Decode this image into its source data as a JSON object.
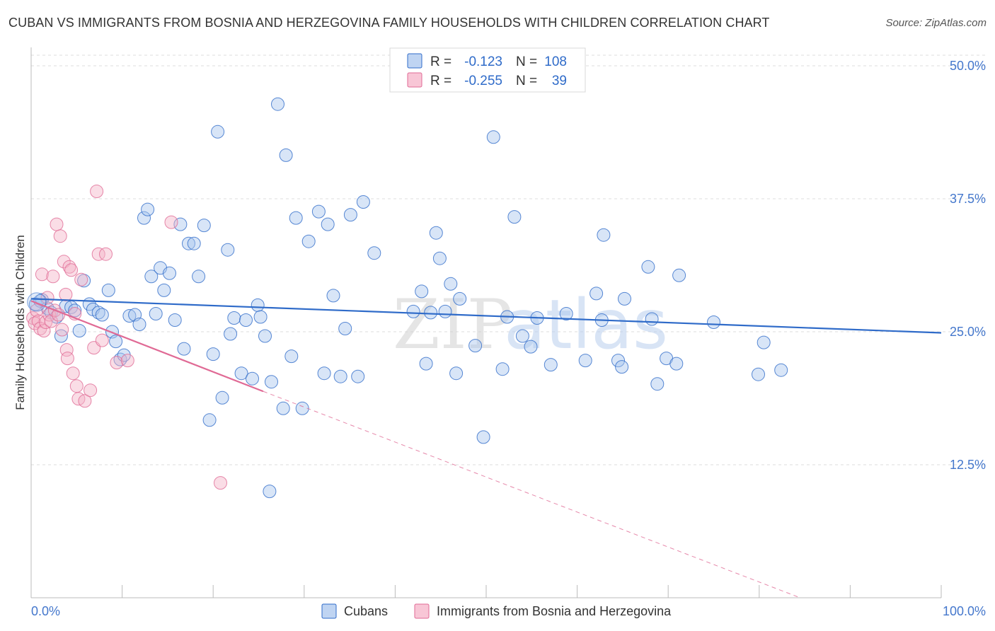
{
  "title": "CUBAN VS IMMIGRANTS FROM BOSNIA AND HERZEGOVINA FAMILY HOUSEHOLDS WITH CHILDREN CORRELATION CHART",
  "source": "Source: ZipAtlas.com",
  "watermark": "ZIPatlas",
  "colors": {
    "blue": "#2f6bc9",
    "blue_fill": "#a9c6ee",
    "pink": "#e06a95",
    "pink_fill": "#f5b3c8",
    "grid": "#dddddd",
    "tick_text": "#4477cc"
  },
  "legend": {
    "rows": [
      {
        "r_label": "R =",
        "r_value": "-0.123",
        "n_label": "N =",
        "n_value": "108"
      },
      {
        "r_label": "R =",
        "r_value": "-0.255",
        "n_label": "N =",
        "n_value": "39"
      }
    ]
  },
  "chart_data": {
    "type": "scatter",
    "title": "CUBAN VS IMMIGRANTS FROM BOSNIA AND HERZEGOVINA FAMILY HOUSEHOLDS WITH CHILDREN CORRELATION CHART",
    "xlabel": "",
    "ylabel": "Family Households with Children",
    "xlim": [
      0,
      100
    ],
    "ylim": [
      0,
      51
    ],
    "x_tick_labels": [
      "0.0%",
      "100.0%"
    ],
    "y_ticks": [
      12.5,
      25.0,
      37.5,
      50.0
    ],
    "y_tick_labels": [
      "12.5%",
      "25.0%",
      "37.5%",
      "50.0%"
    ],
    "grid": true,
    "legend_position": "top-center",
    "series": [
      {
        "name": "Cubans",
        "color": "#2f6bc9",
        "trend": {
          "x": [
            0,
            100
          ],
          "y": [
            28.1,
            24.9
          ],
          "dashed_extension": false
        },
        "points": [
          [
            0.5,
            27.6
          ],
          [
            1.2,
            28.0
          ],
          [
            1.8,
            27.2
          ],
          [
            2.2,
            26.8
          ],
          [
            2.8,
            26.4
          ],
          [
            3.3,
            24.6
          ],
          [
            3.8,
            27.4
          ],
          [
            4.4,
            27.3
          ],
          [
            4.8,
            27.0
          ],
          [
            5.3,
            25.1
          ],
          [
            5.8,
            29.8
          ],
          [
            6.4,
            27.6
          ],
          [
            6.8,
            27.1
          ],
          [
            7.4,
            26.8
          ],
          [
            7.8,
            26.6
          ],
          [
            8.5,
            28.9
          ],
          [
            8.9,
            25.0
          ],
          [
            9.3,
            24.1
          ],
          [
            9.8,
            22.4
          ],
          [
            10.2,
            22.8
          ],
          [
            10.8,
            26.5
          ],
          [
            11.4,
            26.6
          ],
          [
            11.9,
            25.7
          ],
          [
            12.4,
            35.7
          ],
          [
            12.8,
            36.5
          ],
          [
            13.2,
            30.2
          ],
          [
            13.7,
            26.7
          ],
          [
            14.2,
            31.0
          ],
          [
            14.6,
            28.9
          ],
          [
            15.2,
            30.5
          ],
          [
            15.8,
            26.1
          ],
          [
            16.4,
            35.1
          ],
          [
            16.8,
            23.4
          ],
          [
            17.3,
            33.3
          ],
          [
            17.9,
            33.3
          ],
          [
            18.4,
            30.2
          ],
          [
            19.0,
            35.0
          ],
          [
            19.6,
            16.7
          ],
          [
            20.0,
            22.9
          ],
          [
            20.5,
            43.8
          ],
          [
            21.0,
            18.8
          ],
          [
            21.6,
            32.7
          ],
          [
            21.9,
            24.8
          ],
          [
            22.3,
            26.3
          ],
          [
            23.1,
            21.1
          ],
          [
            23.6,
            26.1
          ],
          [
            24.3,
            20.6
          ],
          [
            24.9,
            27.5
          ],
          [
            25.2,
            26.4
          ],
          [
            25.7,
            24.6
          ],
          [
            26.4,
            20.3
          ],
          [
            27.1,
            46.4
          ],
          [
            27.7,
            17.8
          ],
          [
            28.0,
            41.6
          ],
          [
            28.6,
            22.7
          ],
          [
            29.1,
            35.7
          ],
          [
            29.8,
            17.8
          ],
          [
            30.5,
            33.5
          ],
          [
            31.6,
            36.3
          ],
          [
            32.2,
            21.1
          ],
          [
            32.6,
            35.1
          ],
          [
            33.2,
            28.4
          ],
          [
            34.0,
            20.8
          ],
          [
            34.5,
            25.3
          ],
          [
            35.1,
            36.0
          ],
          [
            35.9,
            20.8
          ],
          [
            36.5,
            37.2
          ],
          [
            37.7,
            32.4
          ],
          [
            42.0,
            26.9
          ],
          [
            42.9,
            28.8
          ],
          [
            43.4,
            22.0
          ],
          [
            43.9,
            26.8
          ],
          [
            44.5,
            34.3
          ],
          [
            44.9,
            31.9
          ],
          [
            45.5,
            26.9
          ],
          [
            46.1,
            29.5
          ],
          [
            46.7,
            21.1
          ],
          [
            47.1,
            28.1
          ],
          [
            48.8,
            23.7
          ],
          [
            49.7,
            15.1
          ],
          [
            50.8,
            43.3
          ],
          [
            51.8,
            21.5
          ],
          [
            52.3,
            26.4
          ],
          [
            53.1,
            35.8
          ],
          [
            54.0,
            24.6
          ],
          [
            54.9,
            23.6
          ],
          [
            55.6,
            26.3
          ],
          [
            57.1,
            21.9
          ],
          [
            58.8,
            26.7
          ],
          [
            60.9,
            22.3
          ],
          [
            62.1,
            28.6
          ],
          [
            62.7,
            26.1
          ],
          [
            62.9,
            34.1
          ],
          [
            64.5,
            22.3
          ],
          [
            64.9,
            21.7
          ],
          [
            65.2,
            28.1
          ],
          [
            67.8,
            31.1
          ],
          [
            68.2,
            26.2
          ],
          [
            68.8,
            20.1
          ],
          [
            69.8,
            22.5
          ],
          [
            70.9,
            22.0
          ],
          [
            71.2,
            30.3
          ],
          [
            75.0,
            25.9
          ],
          [
            79.9,
            21.0
          ],
          [
            80.5,
            24.0
          ],
          [
            82.4,
            21.4
          ],
          [
            26.2,
            10.0
          ],
          [
            1.0,
            27.9
          ]
        ]
      },
      {
        "name": "Immigrants from Bosnia and Herzegovina",
        "color": "#e06a95",
        "trend": {
          "x": [
            0,
            25.5
          ],
          "y": [
            27.9,
            19.4
          ],
          "dashed_extension": true,
          "extension_to": [
            84.5,
            0
          ]
        },
        "points": [
          [
            0.2,
            26.3
          ],
          [
            0.4,
            25.8
          ],
          [
            0.6,
            27.0
          ],
          [
            0.8,
            26.0
          ],
          [
            1.0,
            25.3
          ],
          [
            1.2,
            30.4
          ],
          [
            1.4,
            25.1
          ],
          [
            1.6,
            25.9
          ],
          [
            1.8,
            28.2
          ],
          [
            2.0,
            26.6
          ],
          [
            2.2,
            26.0
          ],
          [
            2.4,
            30.2
          ],
          [
            2.6,
            27.0
          ],
          [
            2.8,
            35.1
          ],
          [
            3.0,
            26.6
          ],
          [
            3.2,
            34.0
          ],
          [
            3.4,
            25.2
          ],
          [
            3.6,
            31.6
          ],
          [
            3.8,
            28.5
          ],
          [
            3.9,
            23.3
          ],
          [
            4.0,
            22.5
          ],
          [
            4.2,
            31.1
          ],
          [
            4.4,
            30.8
          ],
          [
            4.6,
            21.1
          ],
          [
            4.8,
            26.7
          ],
          [
            5.0,
            19.9
          ],
          [
            5.2,
            18.7
          ],
          [
            5.5,
            29.9
          ],
          [
            5.9,
            18.5
          ],
          [
            6.5,
            19.5
          ],
          [
            6.9,
            23.5
          ],
          [
            7.2,
            38.2
          ],
          [
            7.4,
            32.3
          ],
          [
            7.8,
            24.2
          ],
          [
            8.2,
            32.3
          ],
          [
            9.4,
            22.1
          ],
          [
            10.6,
            22.3
          ],
          [
            15.4,
            35.3
          ],
          [
            20.8,
            10.8
          ]
        ]
      }
    ]
  }
}
